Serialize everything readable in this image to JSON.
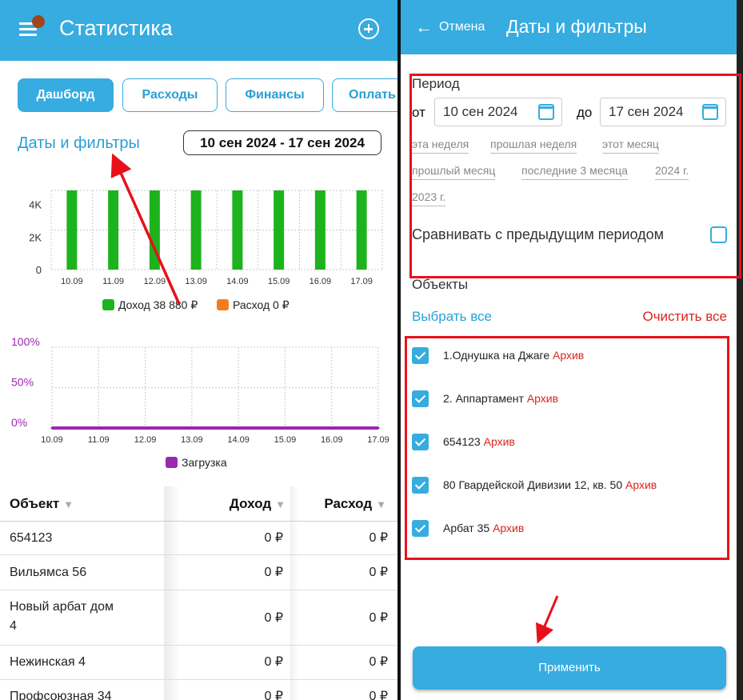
{
  "left": {
    "title": "Статистика",
    "tabs": [
      "Дашборд",
      "Расходы",
      "Финансы",
      "Оплать"
    ],
    "filters_link": "Даты и фильтры",
    "date_range": "10 сен 2024 - 17 сен 2024",
    "table": {
      "headers": [
        "Объект",
        "Доход",
        "Расход"
      ],
      "rows": [
        {
          "object": "654123",
          "income": "0 ₽",
          "expense": "0 ₽"
        },
        {
          "object": "Вильямса 56",
          "income": "0 ₽",
          "expense": "0 ₽"
        },
        {
          "object": "Новый арбат дом 4",
          "income": "0 ₽",
          "expense": "0 ₽"
        },
        {
          "object": "Нежинская 4",
          "income": "0 ₽",
          "expense": "0 ₽"
        },
        {
          "object": "Профсоюзная 34",
          "income": "0 ₽",
          "expense": "0 ₽"
        }
      ]
    }
  },
  "right": {
    "cancel": "Отмена",
    "title": "Даты и фильтры",
    "period_label": "Период",
    "from_label": "от",
    "to_label": "до",
    "from_date": "10 сен 2024",
    "to_date": "17 сен 2024",
    "quick_ranges": [
      "эта неделя",
      "прошлая неделя",
      "этот месяц",
      "прошлый месяц",
      "последние 3 месяца",
      "2024 г.",
      "2023 г."
    ],
    "compare_label": "Сравнивать с предыдущим периодом",
    "compare_checked": false,
    "objects_label": "Объекты",
    "select_all": "Выбрать все",
    "clear_all": "Очистить все",
    "archive_label": "Архив",
    "objects": [
      {
        "name": "1.Однушка на Джаге",
        "checked": true
      },
      {
        "name": "2. Аппартамент",
        "checked": true
      },
      {
        "name": "654123",
        "checked": true
      },
      {
        "name": "80 Гвардейской Дивизии 12, кв. 50",
        "checked": true
      },
      {
        "name": "Арбат 35",
        "checked": true
      }
    ],
    "apply": "Применить"
  },
  "colors": {
    "accent": "#36ace0",
    "income": "#1db31d",
    "expense": "#f47c20",
    "load": "#9c27b0",
    "archive": "#d9251c",
    "annotation": "#e8111a"
  },
  "chart_data": [
    {
      "type": "bar",
      "categories": [
        "10.09",
        "11.09",
        "12.09",
        "13.09",
        "14.09",
        "15.09",
        "16.09",
        "17.09"
      ],
      "series": [
        {
          "name": "Доход 38 880 ₽",
          "values": [
            4860,
            4860,
            4860,
            4860,
            4860,
            4860,
            4860,
            4860
          ]
        },
        {
          "name": "Расход 0 ₽",
          "values": [
            0,
            0,
            0,
            0,
            0,
            0,
            0,
            0
          ]
        }
      ],
      "yticks": [
        "4K",
        "2K",
        "0"
      ],
      "ylim": [
        0,
        4860
      ],
      "legend": "bottom",
      "grid": true
    },
    {
      "type": "line",
      "categories": [
        "10.09",
        "11.09",
        "12.09",
        "13.09",
        "14.09",
        "15.09",
        "16.09",
        "17.09"
      ],
      "series": [
        {
          "name": "Загрузка",
          "values": [
            0,
            0,
            0,
            0,
            0,
            0,
            0,
            0
          ]
        }
      ],
      "yticks": [
        "100%",
        "50%",
        "0%"
      ],
      "ylim": [
        0,
        100
      ],
      "legend": "bottom",
      "grid": true
    }
  ]
}
